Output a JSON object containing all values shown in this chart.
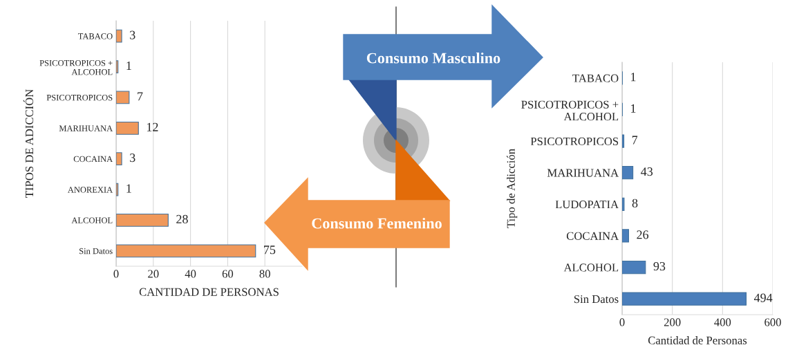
{
  "chart_data": [
    {
      "type": "bar",
      "orientation": "horizontal",
      "ylabel": "TIPOS DE ADICCIÓN",
      "xlabel": "CANTIDAD DE PERSONAS",
      "categories": [
        "TABACO",
        "PSICOTROPICOS +\nALCOHOL",
        "PSICOTROPICOS",
        "MARIHUANA",
        "COCAINA",
        "ANOREXIA",
        "ALCOHOL",
        "Sin Datos"
      ],
      "values": [
        3,
        1,
        7,
        12,
        3,
        1,
        28,
        75
      ],
      "color": "#f0985a",
      "xlim": [
        0,
        100
      ],
      "xticks": [
        0,
        20,
        40,
        60,
        80
      ],
      "grid": "x",
      "data_labels": true,
      "annotations": [
        "Consumo Femenino"
      ]
    },
    {
      "type": "bar",
      "orientation": "horizontal",
      "ylabel": "Tipo de Adicción",
      "xlabel": "Cantidad de Personas",
      "categories": [
        "TABACO",
        "PSICOTROPICOS +\nALCOHOL",
        "PSICOTROPICOS",
        "MARIHUANA",
        "LUDOPATIA",
        "COCAINA",
        "ALCOHOL",
        "Sin Datos"
      ],
      "values": [
        1,
        1,
        7,
        43,
        8,
        26,
        93,
        494
      ],
      "color": "#4a7ebb",
      "xlim": [
        0,
        600
      ],
      "xticks": [
        0,
        200,
        400,
        600
      ],
      "grid": "x",
      "data_labels": true,
      "annotations": [
        "Consumo Masculino"
      ]
    }
  ]
}
